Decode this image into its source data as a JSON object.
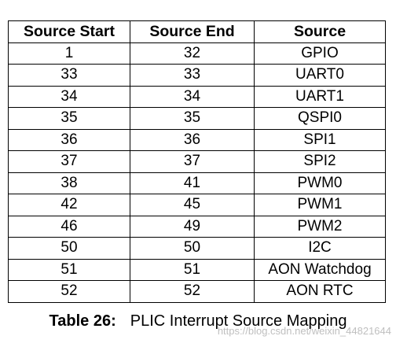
{
  "table": {
    "headers": [
      "Source Start",
      "Source End",
      "Source"
    ],
    "rows": [
      [
        "1",
        "32",
        "GPIO"
      ],
      [
        "33",
        "33",
        "UART0"
      ],
      [
        "34",
        "34",
        "UART1"
      ],
      [
        "35",
        "35",
        "QSPI0"
      ],
      [
        "36",
        "36",
        "SPI1"
      ],
      [
        "37",
        "37",
        "SPI2"
      ],
      [
        "38",
        "41",
        "PWM0"
      ],
      [
        "42",
        "45",
        "PWM1"
      ],
      [
        "46",
        "49",
        "PWM2"
      ],
      [
        "50",
        "50",
        "I2C"
      ],
      [
        "51",
        "51",
        "AON Watchdog"
      ],
      [
        "52",
        "52",
        "AON RTC"
      ]
    ]
  },
  "caption": {
    "label": "Table 26:",
    "text": "PLIC Interrupt Source Mapping"
  },
  "watermark": {
    "text": "https://blog.csdn.net/weixin_44821644"
  }
}
